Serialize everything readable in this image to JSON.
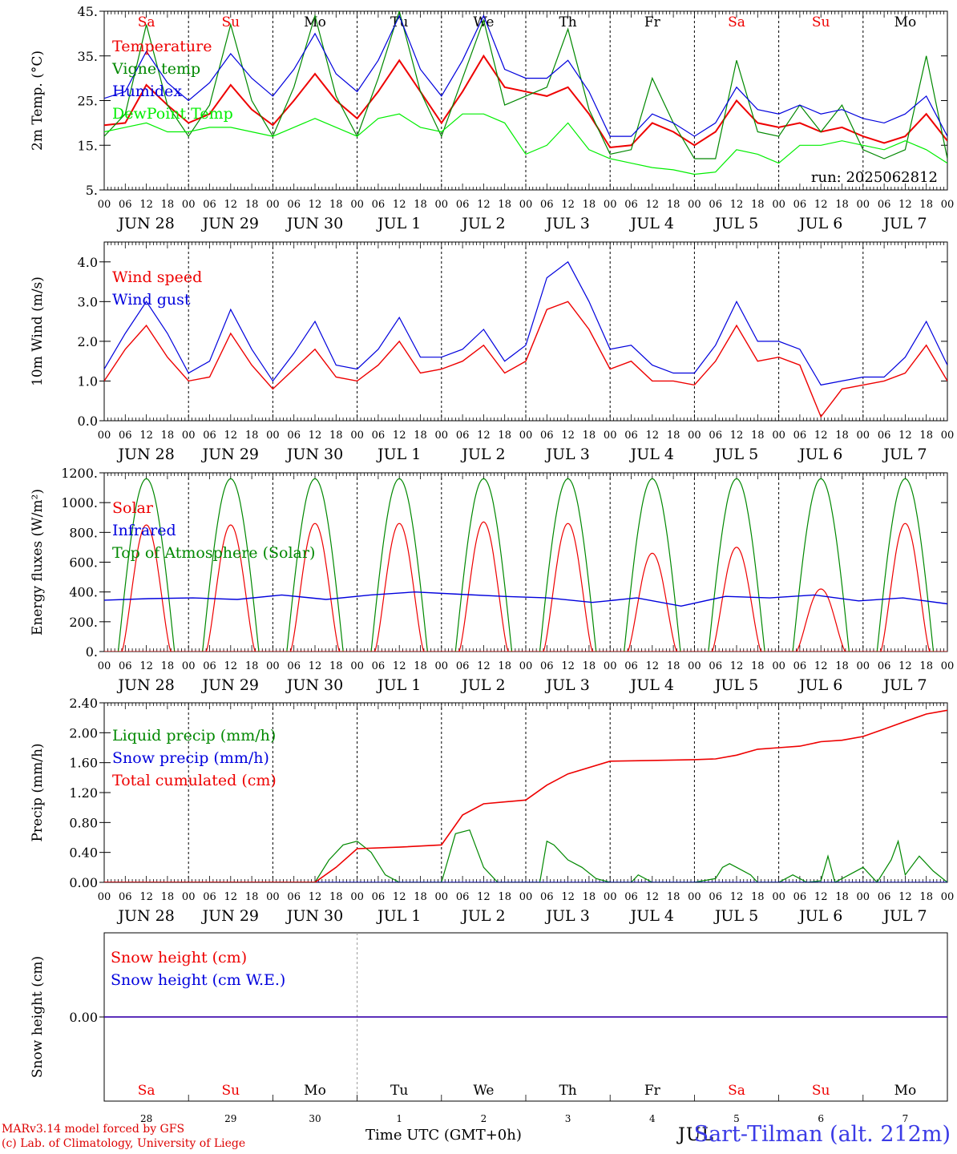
{
  "chart_data": {
    "type": "line",
    "days": [
      "JUN 28",
      "JUN 29",
      "JUN 30",
      "JUL  1",
      "JUL  2",
      "JUL  3",
      "JUL  4",
      "JUL  5",
      "JUL  6",
      "JUL  7"
    ],
    "day_numbers": [
      "28",
      "29",
      "30",
      "1",
      "2",
      "3",
      "4",
      "5",
      "6",
      "7"
    ],
    "weekdays": [
      "Sa",
      "Su",
      "Mo",
      "Tu",
      "We",
      "Th",
      "Fr",
      "Sa",
      "Su",
      "Mo"
    ],
    "weekend_flags": [
      true,
      true,
      false,
      false,
      false,
      false,
      false,
      true,
      true,
      false
    ],
    "hour_ticks": [
      "00",
      "06",
      "12",
      "18"
    ],
    "last_hour_tick": "00",
    "panels": [
      {
        "id": "temperature",
        "ylabel": "2m Temp. (°C)",
        "ylim": [
          5,
          45
        ],
        "yticks": [
          {
            "v": 5,
            "t": "5."
          },
          {
            "v": 15,
            "t": "15."
          },
          {
            "v": 25,
            "t": "25."
          },
          {
            "v": 35,
            "t": "35."
          },
          {
            "v": 45,
            "t": "45."
          }
        ],
        "show_weekdays_top": true,
        "annotation": "run: 2025062812",
        "series": [
          {
            "name": "Temperature",
            "color": "#ee0000",
            "width": 2,
            "x": [
              0,
              6,
              12,
              18,
              24,
              30,
              36,
              42,
              48,
              54,
              60,
              66,
              72,
              78,
              84,
              90,
              96,
              102,
              108,
              114,
              120,
              126,
              132,
              138,
              144,
              150,
              156,
              162,
              168,
              174,
              180,
              186,
              192,
              198,
              204,
              210,
              216,
              222,
              228,
              234,
              240
            ],
            "values": [
              19.5,
              20,
              28.5,
              24,
              20,
              22,
              28.5,
              23,
              19.5,
              25,
              31,
              25,
              21,
              27,
              34,
              27,
              20,
              27,
              35,
              28,
              27,
              26,
              28,
              22,
              14.5,
              15,
              20,
              18,
              15,
              18,
              25,
              20,
              19,
              20,
              18,
              19,
              17,
              15.5,
              17,
              22,
              16
            ]
          },
          {
            "name": "Vigne temp",
            "color": "#008800",
            "width": 1.2,
            "x": [
              0,
              6,
              12,
              18,
              24,
              30,
              36,
              42,
              48,
              54,
              60,
              66,
              72,
              78,
              84,
              90,
              96,
              102,
              108,
              114,
              120,
              126,
              132,
              138,
              144,
              150,
              156,
              162,
              168,
              174,
              180,
              186,
              192,
              198,
              204,
              210,
              216,
              222,
              228,
              234,
              240
            ],
            "values": [
              17,
              22,
              42,
              24,
              17,
              24,
              42,
              25,
              17,
              28,
              44,
              26,
              17,
              30,
              45,
              27,
              17,
              30,
              43,
              24,
              26,
              28,
              41,
              23,
              13,
              14,
              30,
              20,
              12,
              12,
              34,
              18,
              17,
              24,
              18,
              24,
              14,
              12,
              14,
              35,
              12
            ]
          },
          {
            "name": "Humidex",
            "color": "#0000dd",
            "width": 1.2,
            "x": [
              0,
              6,
              12,
              18,
              24,
              30,
              36,
              42,
              48,
              54,
              60,
              66,
              72,
              78,
              84,
              90,
              96,
              102,
              108,
              114,
              120,
              126,
              132,
              138,
              144,
              150,
              156,
              162,
              168,
              174,
              180,
              186,
              192,
              198,
              204,
              210,
              216,
              222,
              228,
              234,
              240
            ],
            "values": [
              25.5,
              27,
              36,
              29,
              25,
              29,
              35.5,
              30,
              26,
              32,
              40,
              31,
              27,
              34,
              44,
              32,
              26,
              34,
              44,
              32,
              30,
              30,
              34,
              27,
              17,
              17,
              22,
              20,
              17,
              20,
              28,
              23,
              22,
              24,
              22,
              23,
              21,
              20,
              22,
              26,
              17
            ]
          },
          {
            "name": "DewPoint Temp",
            "color": "#00ee00",
            "width": 1.2,
            "x": [
              0,
              6,
              12,
              18,
              24,
              30,
              36,
              42,
              48,
              54,
              60,
              66,
              72,
              78,
              84,
              90,
              96,
              102,
              108,
              114,
              120,
              126,
              132,
              138,
              144,
              150,
              156,
              162,
              168,
              174,
              180,
              186,
              192,
              198,
              204,
              210,
              216,
              222,
              228,
              234,
              240
            ],
            "values": [
              18,
              19,
              20,
              18,
              18,
              19,
              19,
              18,
              17,
              19,
              21,
              19,
              17,
              21,
              22,
              19,
              18,
              22,
              22,
              20,
              13,
              15,
              20,
              14,
              12,
              11,
              10,
              9.5,
              8.5,
              9,
              14,
              13,
              11,
              15,
              15,
              16,
              15,
              14,
              16,
              14,
              11
            ]
          }
        ]
      },
      {
        "id": "wind",
        "ylabel": "10m Wind (m/s)",
        "ylim": [
          0,
          4.5
        ],
        "yticks": [
          {
            "v": 0,
            "t": "0.0"
          },
          {
            "v": 1,
            "t": "1.0"
          },
          {
            "v": 2,
            "t": "2.0"
          },
          {
            "v": 3,
            "t": "3.0"
          },
          {
            "v": 4,
            "t": "4.0"
          }
        ],
        "show_weekdays_top": false,
        "annotation": "",
        "series": [
          {
            "name": "Wind speed",
            "color": "#ee0000",
            "width": 1.4,
            "x": [
              0,
              6,
              12,
              18,
              24,
              30,
              36,
              42,
              48,
              54,
              60,
              66,
              72,
              78,
              84,
              90,
              96,
              102,
              108,
              114,
              120,
              126,
              132,
              138,
              144,
              150,
              156,
              162,
              168,
              174,
              180,
              186,
              192,
              198,
              204,
              210,
              216,
              222,
              228,
              234,
              240
            ],
            "values": [
              1.0,
              1.8,
              2.4,
              1.6,
              1.0,
              1.1,
              2.2,
              1.4,
              0.8,
              1.3,
              1.8,
              1.1,
              1.0,
              1.4,
              2.0,
              1.2,
              1.3,
              1.5,
              1.9,
              1.2,
              1.5,
              2.8,
              3.0,
              2.3,
              1.3,
              1.5,
              1.0,
              1.0,
              0.9,
              1.5,
              2.4,
              1.5,
              1.6,
              1.4,
              0.1,
              0.8,
              0.9,
              1.0,
              1.2,
              1.9,
              1.0
            ]
          },
          {
            "name": "Wind gust",
            "color": "#0000dd",
            "width": 1.2,
            "x": [
              0,
              6,
              12,
              18,
              24,
              30,
              36,
              42,
              48,
              54,
              60,
              66,
              72,
              78,
              84,
              90,
              96,
              102,
              108,
              114,
              120,
              126,
              132,
              138,
              144,
              150,
              156,
              162,
              168,
              174,
              180,
              186,
              192,
              198,
              204,
              210,
              216,
              222,
              228,
              234,
              240
            ],
            "values": [
              1.3,
              2.2,
              3.0,
              2.2,
              1.2,
              1.5,
              2.8,
              1.8,
              1.0,
              1.7,
              2.5,
              1.4,
              1.3,
              1.8,
              2.6,
              1.6,
              1.6,
              1.8,
              2.3,
              1.5,
              1.9,
              3.6,
              4.0,
              3.0,
              1.8,
              1.9,
              1.4,
              1.2,
              1.2,
              1.9,
              3.0,
              2.0,
              2.0,
              1.8,
              0.9,
              1.0,
              1.1,
              1.1,
              1.6,
              2.5,
              1.4
            ]
          }
        ]
      },
      {
        "id": "energy",
        "ylabel": "Energy fluxes (W/m²)",
        "ylim": [
          0,
          1200
        ],
        "yticks": [
          {
            "v": 0,
            "t": "0."
          },
          {
            "v": 200,
            "t": "200."
          },
          {
            "v": 400,
            "t": "400."
          },
          {
            "v": 600,
            "t": "600."
          },
          {
            "v": 800,
            "t": "800."
          },
          {
            "v": 1000,
            "t": "1000."
          },
          {
            "v": 1200,
            "t": "1200."
          }
        ],
        "show_weekdays_top": false,
        "annotation": "",
        "solar_peaks": [
          850,
          850,
          860,
          860,
          870,
          860,
          660,
          700,
          420,
          860
        ],
        "toa_peak": 1160,
        "infrared_values": [
          345,
          355,
          360,
          350,
          380,
          350,
          380,
          400,
          385,
          370,
          360,
          330,
          360,
          305,
          370,
          360,
          380,
          340,
          360,
          320
        ],
        "series": [
          {
            "name": "Solar",
            "color": "#ee0000",
            "width": 1.2
          },
          {
            "name": "Infrared",
            "color": "#0000dd",
            "width": 1.4
          },
          {
            "name": "Top of Atmosphere (Solar)",
            "color": "#008800",
            "width": 1.2
          }
        ]
      },
      {
        "id": "precip",
        "ylabel": "Precip (mm/h)",
        "ylim": [
          0,
          2.4
        ],
        "yticks": [
          {
            "v": 0,
            "t": "0.00"
          },
          {
            "v": 0.4,
            "t": "0.40"
          },
          {
            "v": 0.8,
            "t": "0.80"
          },
          {
            "v": 1.2,
            "t": "1.20"
          },
          {
            "v": 1.6,
            "t": "1.60"
          },
          {
            "v": 2.0,
            "t": "2.00"
          },
          {
            "v": 2.4,
            "t": "2.40"
          }
        ],
        "show_weekdays_top": false,
        "annotation": "",
        "series": [
          {
            "name": "Liquid precip (mm/h)",
            "color": "#008800",
            "width": 1.2,
            "x": [
              0,
              60,
              64,
              68,
              72,
              76,
              80,
              84,
              88,
              96,
              100,
              104,
              108,
              112,
              116,
              120,
              124,
              126,
              128,
              132,
              136,
              140,
              144,
              150,
              152,
              156,
              168,
              174,
              176,
              178,
              180,
              184,
              186,
              192,
              196,
              200,
              204,
              206,
              208,
              212,
              216,
              220,
              224,
              226,
              228,
              232,
              236,
              240
            ],
            "values": [
              0,
              0,
              0.3,
              0.5,
              0.55,
              0.4,
              0.1,
              0,
              0,
              0,
              0.65,
              0.7,
              0.2,
              0,
              0,
              0,
              0,
              0.55,
              0.5,
              0.3,
              0.2,
              0.05,
              0,
              0,
              0.1,
              0,
              0,
              0.05,
              0.2,
              0.25,
              0.2,
              0.1,
              0,
              0,
              0.1,
              0,
              0.02,
              0.35,
              0,
              0.1,
              0.2,
              0,
              0.3,
              0.55,
              0.1,
              0.35,
              0.15,
              0
            ]
          },
          {
            "name": "Snow precip (mm/h)",
            "color": "#0000dd",
            "width": 1.2,
            "x": [
              0,
              240
            ],
            "values": [
              0,
              0
            ]
          },
          {
            "name": "Total cumulated (cm)",
            "color": "#ee0000",
            "width": 1.6,
            "x": [
              0,
              60,
              66,
              72,
              84,
              96,
              102,
              108,
              120,
              126,
              132,
              144,
              156,
              168,
              174,
              180,
              186,
              192,
              198,
              204,
              210,
              216,
              222,
              228,
              234,
              240
            ],
            "values": [
              0,
              0,
              0.2,
              0.45,
              0.47,
              0.5,
              0.9,
              1.05,
              1.1,
              1.3,
              1.45,
              1.62,
              1.63,
              1.64,
              1.65,
              1.7,
              1.78,
              1.8,
              1.82,
              1.88,
              1.9,
              1.95,
              2.05,
              2.15,
              2.25,
              2.3
            ]
          }
        ]
      },
      {
        "id": "snow",
        "ylabel": "Snow height (cm)",
        "ylim": [
          -1,
          1
        ],
        "yticks": [
          {
            "v": 0,
            "t": "0.00"
          }
        ],
        "show_weekdays_top": false,
        "annotation": "",
        "series": [
          {
            "name": "Snow height (cm)",
            "color": "#ee0000",
            "width": 1.4,
            "x": [
              0,
              240
            ],
            "values": [
              0,
              0
            ]
          },
          {
            "name": "Snow height (cm W.E.)",
            "color": "#0000dd",
            "width": 1.2,
            "x": [
              0,
              240
            ],
            "values": [
              0,
              0
            ]
          }
        ]
      }
    ]
  },
  "footer": {
    "credit_line1": "MARv3.14 model forced by GFS",
    "credit_line2": "(c) Lab. of Climatology, University of Liege",
    "xlabel": "Time UTC (GMT+0h)",
    "location": "Sart-Tilman (alt. 212m)",
    "overlap_label": "JUL"
  }
}
